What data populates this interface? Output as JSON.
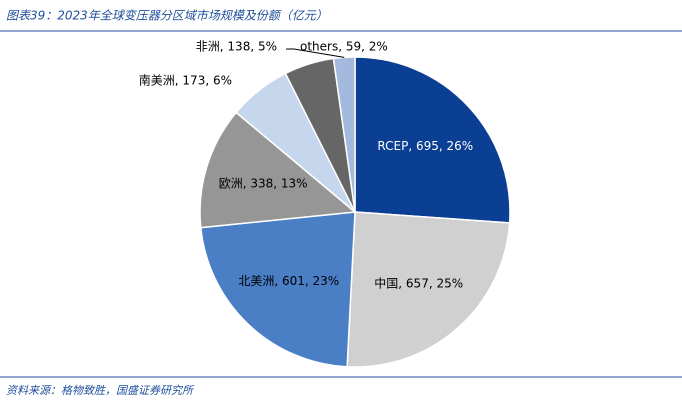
{
  "chart_data": {
    "type": "pie",
    "title": "图表39：2023年全球变压器分区域市场规模及份额（亿元）",
    "source": "资料来源：格物致胜，国盛证券研究所",
    "categories": [
      "RCEP",
      "中国",
      "北美洲",
      "欧洲",
      "南美洲",
      "非洲",
      "others"
    ],
    "values": [
      695,
      657,
      601,
      338,
      173,
      138,
      59
    ],
    "value_labels": [
      "RCEP, 695, 26%",
      "中国, 657, 25%",
      "北美洲, 601, 23%",
      "欧洲, 338, 13%",
      "南美洲, 173, 6%",
      "非洲, 138, 5%",
      "others, 59, 2%"
    ],
    "colors": [
      "#0b3f93",
      "#d0d0d0",
      "#4a7fc6",
      "#969696",
      "#c6d6ed",
      "#666666",
      "#a3b9dd"
    ]
  }
}
